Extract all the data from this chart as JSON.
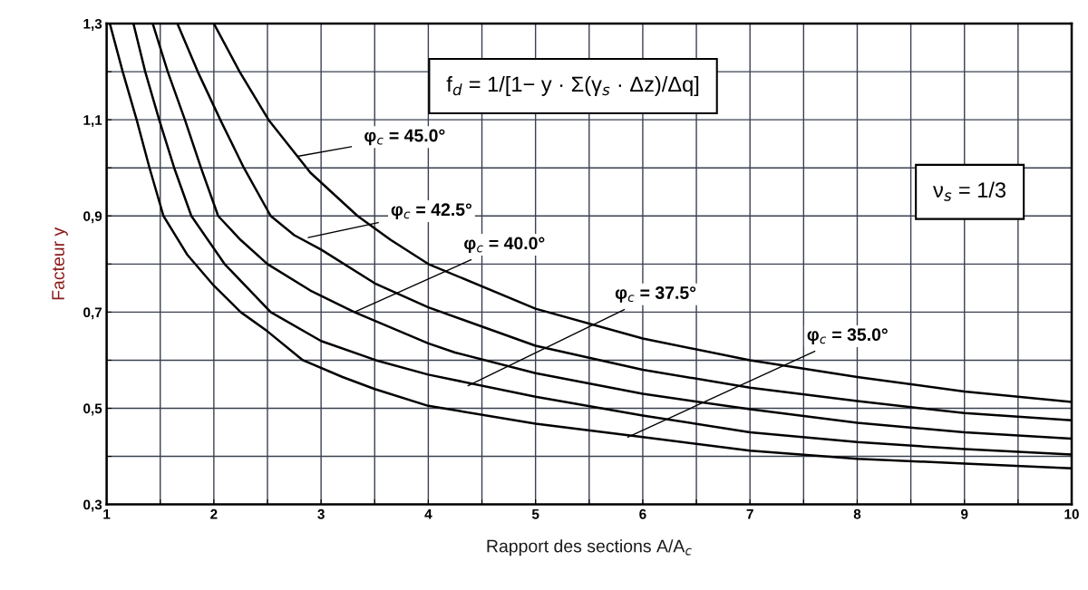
{
  "chart_data": {
    "type": "line",
    "xlabel": "Rapport des sections A/A$_{c}$",
    "ylabel": "Facteur y",
    "xlim": [
      1,
      10
    ],
    "ylim": [
      0.3,
      1.3
    ],
    "xticks": [
      1,
      {
        "value": 1.5,
        "label": null
      },
      2,
      {
        "value": 2.5,
        "label": null
      },
      3,
      {
        "value": 3.5,
        "label": null
      },
      4,
      {
        "value": 4.5,
        "label": null
      },
      5,
      {
        "value": 5.5,
        "label": null
      },
      6,
      {
        "value": 6.5,
        "label": null
      },
      7,
      {
        "value": 7.5,
        "label": null
      },
      8,
      {
        "value": 8.5,
        "label": null
      },
      9,
      {
        "value": 9.5,
        "label": null
      },
      10
    ],
    "yticks": [
      {
        "value": 0.3,
        "label": "0,3"
      },
      {
        "value": 0.4,
        "label": null
      },
      {
        "value": 0.5,
        "label": "0,5"
      },
      {
        "value": 0.6,
        "label": null
      },
      {
        "value": 0.7,
        "label": "0,7"
      },
      {
        "value": 0.8,
        "label": null
      },
      {
        "value": 0.9,
        "label": "0,9"
      },
      {
        "value": 1.0,
        "label": null
      },
      {
        "value": 1.1,
        "label": "1,1"
      },
      {
        "value": 1.2,
        "label": null
      },
      {
        "value": 1.3,
        "label": "1,3"
      }
    ],
    "grid": true,
    "marker": "none",
    "line_style": "solid",
    "legend": false,
    "series": [
      {
        "color": "#000000",
        "x": [
          1.03,
          1.15,
          1.28,
          1.4,
          1.53,
          1.75,
          2.0,
          2.25,
          2.5,
          2.83,
          3.2,
          3.5,
          4,
          5,
          6,
          7,
          8,
          9,
          10
        ],
        "values": [
          1.3,
          1.2,
          1.1,
          1.0,
          0.9,
          0.82,
          0.755,
          0.7,
          0.66,
          0.6,
          0.565,
          0.54,
          0.505,
          0.468,
          0.44,
          0.412,
          0.395,
          0.385,
          0.375
        ]
      },
      {
        "color": "#000000",
        "x": [
          1.25,
          1.36,
          1.49,
          1.63,
          1.79,
          2.1,
          2.53,
          3,
          3.51,
          4,
          5,
          6,
          7,
          8,
          9,
          10
        ],
        "values": [
          1.3,
          1.2,
          1.1,
          1.0,
          0.9,
          0.8,
          0.7,
          0.64,
          0.6,
          0.57,
          0.524,
          0.485,
          0.45,
          0.43,
          0.415,
          0.404
        ]
      },
      {
        "color": "#000000",
        "x": [
          1.43,
          1.57,
          1.73,
          1.88,
          2.04,
          2.25,
          2.5,
          2.9,
          3.31,
          4,
          4.25,
          5,
          6,
          7,
          8,
          9,
          10
        ],
        "values": [
          1.3,
          1.2,
          1.1,
          1.0,
          0.9,
          0.85,
          0.8,
          0.745,
          0.7,
          0.635,
          0.616,
          0.573,
          0.53,
          0.498,
          0.47,
          0.45,
          0.437
        ]
      },
      {
        "color": "#000000",
        "x": [
          1.66,
          1.85,
          2.06,
          2.28,
          2.53,
          2.75,
          3,
          3.5,
          4,
          5,
          6,
          7,
          8,
          9,
          10
        ],
        "values": [
          1.3,
          1.2,
          1.1,
          1.0,
          0.9,
          0.86,
          0.83,
          0.76,
          0.71,
          0.63,
          0.58,
          0.543,
          0.515,
          0.49,
          0.475
        ]
      },
      {
        "color": "#000000",
        "x": [
          2.0,
          2.24,
          2.51,
          2.9,
          3.34,
          3.65,
          4,
          5,
          6,
          7,
          8,
          9,
          10
        ],
        "values": [
          1.3,
          1.2,
          1.1,
          0.99,
          0.9,
          0.85,
          0.8,
          0.707,
          0.645,
          0.6,
          0.565,
          0.535,
          0.513
        ]
      }
    ],
    "annotations": [
      "f$_{d}$ = 1/[1− y · Σ(γ$_{s}$ · Δz)/Δq]",
      "ν$_{s}$ = 1/3",
      {
        "text": "φ$_{c}$ = 45.0°",
        "x": 2.78,
        "y": 1.024
      },
      {
        "text": "φ$_{c}$ = 42.5°",
        "x": 2.88,
        "y": 0.855
      },
      {
        "text": "φ$_{c}$ = 40.0°",
        "x": 3.31,
        "y": 0.7
      },
      {
        "text": "φ$_{c}$ = 37.5°",
        "x": 4.37,
        "y": 0.547
      },
      {
        "text": "φ$_{c}$ = 35.0°",
        "x": 5.86,
        "y": 0.44
      }
    ]
  }
}
